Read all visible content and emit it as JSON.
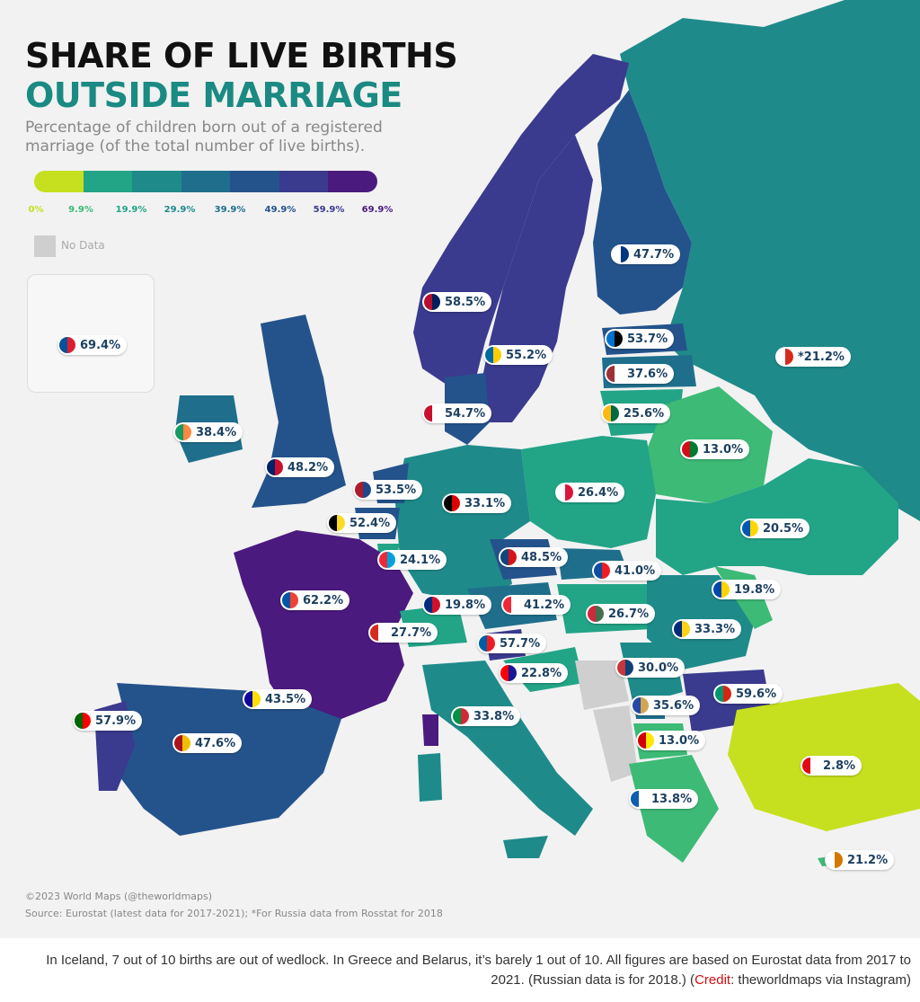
{
  "title_line1": "SHARE OF LIVE BIRTHS",
  "title_line2": "OUTSIDE MARRIAGE",
  "subtitle": "Percentage of children born out of a registered marriage (of the total number of live births).",
  "legend": {
    "ticks": [
      "0%",
      "9.9%",
      "19.9%",
      "29.9%",
      "39.9%",
      "49.9%",
      "59.9%",
      "69.9%"
    ],
    "colors": [
      "#c6e01f",
      "#3dba76",
      "#22a487",
      "#1f8a8a",
      "#1f6f8c",
      "#24538c",
      "#3a3a8e",
      "#4b1a7e"
    ],
    "no_data": "No Data",
    "no_data_color": "#cfcfcf"
  },
  "countries": [
    {
      "name": "Iceland",
      "value": "69.4%"
    },
    {
      "name": "Finland",
      "value": "47.7%"
    },
    {
      "name": "Norway",
      "value": "58.5%"
    },
    {
      "name": "Estonia",
      "value": "53.7%"
    },
    {
      "name": "Sweden",
      "value": "55.2%"
    },
    {
      "name": "Russia",
      "value": "*21.2%"
    },
    {
      "name": "Latvia",
      "value": "37.6%"
    },
    {
      "name": "Denmark",
      "value": "54.7%"
    },
    {
      "name": "Lithuania",
      "value": "25.6%"
    },
    {
      "name": "Ireland",
      "value": "38.4%"
    },
    {
      "name": "Belarus",
      "value": "13.0%"
    },
    {
      "name": "United Kingdom",
      "value": "48.2%"
    },
    {
      "name": "Netherlands",
      "value": "53.5%"
    },
    {
      "name": "Poland",
      "value": "26.4%"
    },
    {
      "name": "Germany",
      "value": "33.1%"
    },
    {
      "name": "Belgium",
      "value": "52.4%"
    },
    {
      "name": "Ukraine",
      "value": "20.5%"
    },
    {
      "name": "Luxembourg",
      "value": "24.1%"
    },
    {
      "name": "Czechia",
      "value": "48.5%"
    },
    {
      "name": "Slovakia",
      "value": "41.0%"
    },
    {
      "name": "France",
      "value": "62.2%"
    },
    {
      "name": "Moldova",
      "value": "19.8%"
    },
    {
      "name": "Liechtenstein",
      "value": "19.8%"
    },
    {
      "name": "Austria",
      "value": "41.2%"
    },
    {
      "name": "Hungary",
      "value": "26.7%"
    },
    {
      "name": "Switzerland",
      "value": "27.7%"
    },
    {
      "name": "Romania",
      "value": "33.3%"
    },
    {
      "name": "Slovenia",
      "value": "57.7%"
    },
    {
      "name": "Serbia",
      "value": "30.0%"
    },
    {
      "name": "Croatia",
      "value": "22.8%"
    },
    {
      "name": "Bulgaria",
      "value": "59.6%"
    },
    {
      "name": "Andorra",
      "value": "43.5%"
    },
    {
      "name": "Kosovo",
      "value": "35.6%"
    },
    {
      "name": "Portugal",
      "value": "57.9%"
    },
    {
      "name": "Italy",
      "value": "33.8%"
    },
    {
      "name": "North Macedonia",
      "value": "13.0%"
    },
    {
      "name": "Spain",
      "value": "47.6%"
    },
    {
      "name": "Turkey",
      "value": "2.8%"
    },
    {
      "name": "Greece",
      "value": "13.8%"
    },
    {
      "name": "Cyprus",
      "value": "21.2%"
    }
  ],
  "credit": {
    "line1": "©2023 World Maps (@theworldmaps)",
    "line2": "Source: Eurostat (latest data for 2017-2021); *For Russia data from Rosstat for 2018"
  },
  "caption": {
    "text_before": "In Iceland, 7 out of 10 births are out of wedlock. In Greece and Belarus, it’s barely 1 out of 10. All figures are based on Eurostat data from 2017 to 2021. (Russian data is for 2018.) (",
    "credit_word": "Credit",
    "text_after": ": theworldmaps via Instagram)"
  }
}
